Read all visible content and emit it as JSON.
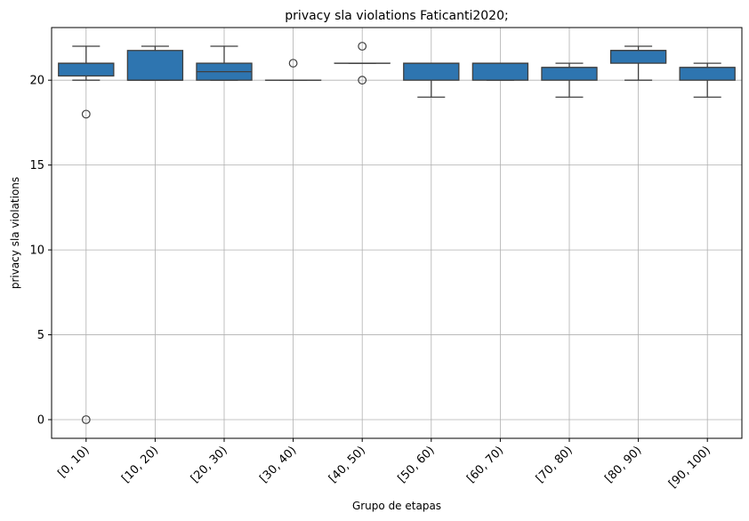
{
  "chart_data": {
    "type": "box",
    "title": "privacy sla violations Faticanti2020;",
    "xlabel": "Grupo de etapas",
    "ylabel": "privacy sla violations",
    "ylim": [
      -1.1,
      23.1
    ],
    "yticks": [
      0,
      5,
      10,
      15,
      20
    ],
    "grid": true,
    "box_color": "#2e75b0",
    "categories": [
      "[0, 10)",
      "[10, 20)",
      "[20, 30)",
      "[30, 40)",
      "[40, 50)",
      "[50, 60)",
      "[60, 70)",
      "[70, 80)",
      "[80, 90)",
      "[90, 100)"
    ],
    "boxes": [
      {
        "whislo": 20,
        "q1": 20.25,
        "med": 21,
        "q3": 21,
        "whishi": 22,
        "fliers": [
          18,
          0
        ]
      },
      {
        "whislo": 20,
        "q1": 20,
        "med": 20,
        "q3": 21.75,
        "whishi": 22,
        "fliers": []
      },
      {
        "whislo": 20,
        "q1": 20,
        "med": 20.5,
        "q3": 21,
        "whishi": 22,
        "fliers": []
      },
      {
        "whislo": 20,
        "q1": 20,
        "med": 20,
        "q3": 20,
        "whishi": 20,
        "fliers": [
          21
        ]
      },
      {
        "whislo": 21,
        "q1": 21,
        "med": 21,
        "q3": 21,
        "whishi": 21,
        "fliers": [
          22,
          20
        ]
      },
      {
        "whislo": 19,
        "q1": 20,
        "med": 21,
        "q3": 21,
        "whishi": 21,
        "fliers": []
      },
      {
        "whislo": 20,
        "q1": 20,
        "med": 21,
        "q3": 21,
        "whishi": 21,
        "fliers": []
      },
      {
        "whislo": 19,
        "q1": 20,
        "med": 20.75,
        "q3": 20.75,
        "whishi": 21,
        "fliers": []
      },
      {
        "whislo": 20,
        "q1": 21,
        "med": 21.75,
        "q3": 21.75,
        "whishi": 22,
        "fliers": []
      },
      {
        "whislo": 19,
        "q1": 20,
        "med": 20.75,
        "q3": 20.75,
        "whishi": 21,
        "fliers": []
      }
    ]
  }
}
